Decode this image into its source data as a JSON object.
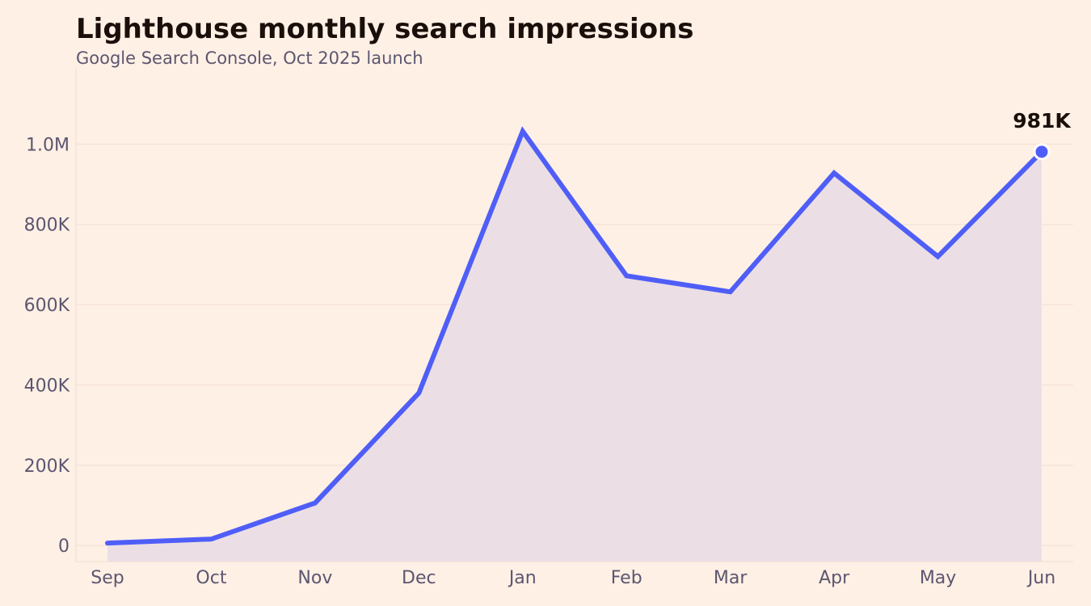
{
  "chart_data": {
    "type": "area",
    "title": "Lighthouse monthly search impressions",
    "subtitle": "Google Search Console, Oct 2025 launch",
    "xlabel": "",
    "ylabel": "",
    "categories": [
      "Sep",
      "Oct",
      "Nov",
      "Dec",
      "Jan",
      "Feb",
      "Mar",
      "Apr",
      "May",
      "Jun"
    ],
    "series": [
      {
        "values": [
          6000,
          16000,
          106000,
          380000,
          1032000,
          672000,
          632000,
          928000,
          720000,
          981000
        ],
        "color": "#4f5ef7"
      }
    ],
    "ylim": [
      -40000,
      1190000
    ],
    "y_ticks": [
      0,
      200000,
      400000,
      600000,
      800000,
      1000000
    ],
    "y_tick_labels": [
      "0",
      "200K",
      "400K",
      "600K",
      "800K",
      "1.0M"
    ],
    "end_label": "981K",
    "grid": true,
    "fill_color": "#ebdfe5",
    "grid_color": "#f6e3d8"
  }
}
